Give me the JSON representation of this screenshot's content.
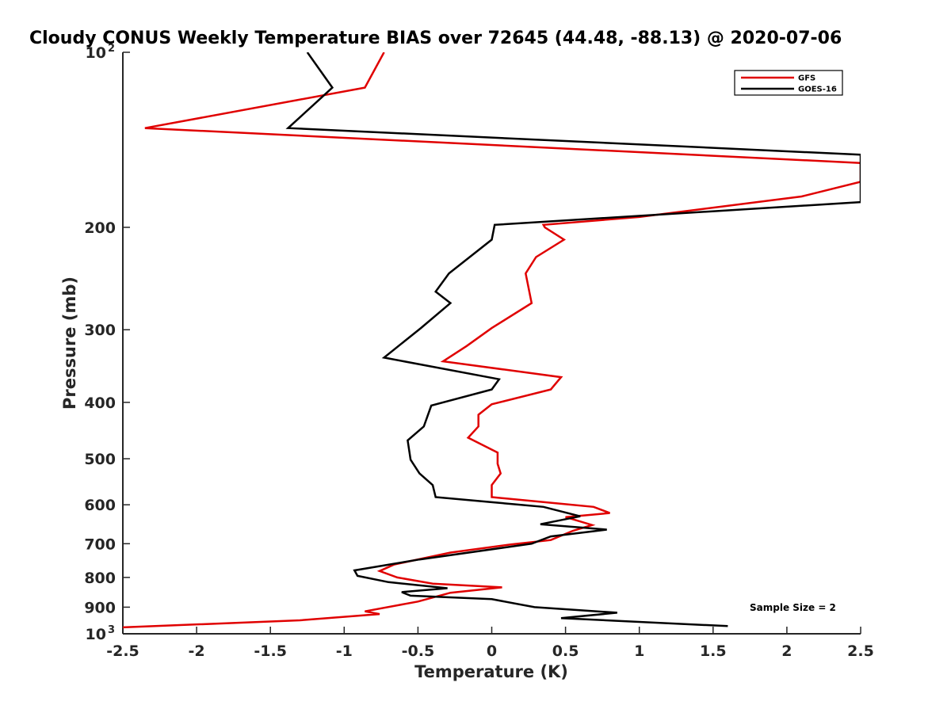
{
  "chart_data": {
    "type": "line",
    "title": "Cloudy CONUS Weekly Temperature BIAS over 72645 (44.48, -88.13) @ 2020-07-06",
    "xlabel": "Temperature (K)",
    "ylabel": "Pressure (mb)",
    "xlim": [
      -2.5,
      2.5
    ],
    "ylim": [
      100,
      1000
    ],
    "y_scale": "log",
    "y_reversed": true,
    "x_ticks": [
      "-2.5",
      "-2",
      "-1.5",
      "-1",
      "-0.5",
      "0",
      "0.5",
      "1",
      "1.5",
      "2",
      "2.5"
    ],
    "y_ticks": [
      {
        "value": 100,
        "label": "10",
        "exponent": "2"
      },
      {
        "value": 200,
        "label": "200"
      },
      {
        "value": 300,
        "label": "300"
      },
      {
        "value": 400,
        "label": "400"
      },
      {
        "value": 500,
        "label": "500"
      },
      {
        "value": 600,
        "label": "600"
      },
      {
        "value": 700,
        "label": "700"
      },
      {
        "value": 800,
        "label": "800"
      },
      {
        "value": 900,
        "label": "900"
      },
      {
        "value": 1000,
        "label": "10",
        "exponent": "3"
      }
    ],
    "legend": {
      "position": "top-right"
    },
    "annotation": "Sample Size = 2",
    "grid": false,
    "series": [
      {
        "name": "GFS",
        "color": "#e00000",
        "points": [
          [
            -0.73,
            100
          ],
          [
            -0.86,
            115
          ],
          [
            -2.35,
            135
          ],
          [
            2.5,
            155
          ],
          [
            2.5,
            167
          ],
          [
            2.1,
            177
          ],
          [
            1.0,
            192
          ],
          [
            0.35,
            198
          ],
          [
            0.36,
            200
          ],
          [
            0.49,
            210
          ],
          [
            0.3,
            225
          ],
          [
            0.23,
            240
          ],
          [
            0.27,
            270
          ],
          [
            0.0,
            298
          ],
          [
            -0.17,
            320
          ],
          [
            -0.33,
            340
          ],
          [
            0.47,
            362
          ],
          [
            0.4,
            380
          ],
          [
            0.0,
            403
          ],
          [
            -0.09,
            420
          ],
          [
            -0.09,
            440
          ],
          [
            -0.16,
            460
          ],
          [
            0.04,
            488
          ],
          [
            0.04,
            510
          ],
          [
            0.06,
            530
          ],
          [
            0.0,
            555
          ],
          [
            0.0,
            582
          ],
          [
            0.69,
            605
          ],
          [
            0.8,
            620
          ],
          [
            0.5,
            630
          ],
          [
            0.68,
            650
          ],
          [
            0.55,
            665
          ],
          [
            0.4,
            690
          ],
          [
            0.13,
            702
          ],
          [
            -0.28,
            725
          ],
          [
            -0.66,
            760
          ],
          [
            -0.76,
            780
          ],
          [
            -0.64,
            800
          ],
          [
            -0.4,
            820
          ],
          [
            0.07,
            832
          ],
          [
            -0.28,
            850
          ],
          [
            -0.5,
            880
          ],
          [
            -0.86,
            915
          ],
          [
            -0.76,
            925
          ],
          [
            -1.3,
            948
          ],
          [
            -2.5,
            975
          ]
        ]
      },
      {
        "name": "GOES-16",
        "color": "#000000",
        "points": [
          [
            -1.25,
            100
          ],
          [
            -1.08,
            115
          ],
          [
            -1.38,
            135
          ],
          [
            2.5,
            150
          ],
          [
            2.5,
            165
          ],
          [
            2.5,
            181
          ],
          [
            0.02,
            198
          ],
          [
            0.0,
            210
          ],
          [
            -0.29,
            240
          ],
          [
            -0.38,
            258
          ],
          [
            -0.28,
            270
          ],
          [
            -0.48,
            298
          ],
          [
            -0.73,
            335
          ],
          [
            0.05,
            365
          ],
          [
            0.0,
            380
          ],
          [
            -0.41,
            405
          ],
          [
            -0.46,
            440
          ],
          [
            -0.57,
            465
          ],
          [
            -0.55,
            502
          ],
          [
            -0.49,
            530
          ],
          [
            -0.4,
            555
          ],
          [
            -0.38,
            582
          ],
          [
            0.35,
            605
          ],
          [
            0.6,
            628
          ],
          [
            0.33,
            648
          ],
          [
            0.78,
            662
          ],
          [
            0.4,
            680
          ],
          [
            0.27,
            700
          ],
          [
            -0.49,
            745
          ],
          [
            -0.93,
            778
          ],
          [
            -0.91,
            795
          ],
          [
            -0.7,
            815
          ],
          [
            -0.3,
            835
          ],
          [
            -0.61,
            848
          ],
          [
            -0.55,
            860
          ],
          [
            0.0,
            872
          ],
          [
            0.29,
            900
          ],
          [
            0.85,
            920
          ],
          [
            0.47,
            940
          ],
          [
            1.6,
            970
          ]
        ]
      }
    ]
  }
}
